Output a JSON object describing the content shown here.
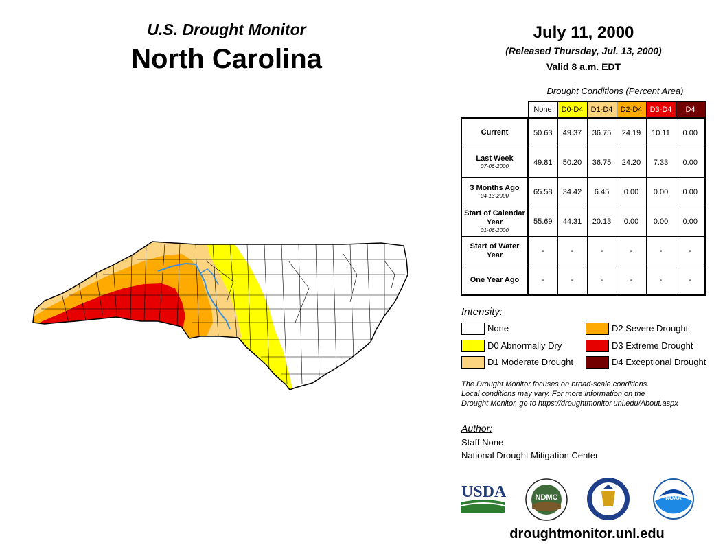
{
  "header": {
    "subtitle": "U.S. Drought Monitor",
    "state": "North Carolina",
    "date": "July 11, 2000",
    "released": "(Released Thursday, Jul. 13, 2000)",
    "valid": "Valid 8 a.m. EDT"
  },
  "table": {
    "caption": "Drought Conditions (Percent Area)",
    "columns": [
      "None",
      "D0-D4",
      "D1-D4",
      "D2-D4",
      "D3-D4",
      "D4"
    ],
    "rows": [
      {
        "label": "Current",
        "date": "",
        "values": [
          "50.63",
          "49.37",
          "36.75",
          "24.19",
          "10.11",
          "0.00"
        ]
      },
      {
        "label": "Last Week",
        "date": "07-06-2000",
        "values": [
          "49.81",
          "50.20",
          "36.75",
          "24.20",
          "7.33",
          "0.00"
        ]
      },
      {
        "label": "3 Months Ago",
        "date": "04-13-2000",
        "values": [
          "65.58",
          "34.42",
          "6.45",
          "0.00",
          "0.00",
          "0.00"
        ]
      },
      {
        "label": "Start of Calendar Year",
        "date": "01-06-2000",
        "values": [
          "55.69",
          "44.31",
          "20.13",
          "0.00",
          "0.00",
          "0.00"
        ]
      },
      {
        "label": "Start of Water Year",
        "date": "",
        "values": [
          "-",
          "-",
          "-",
          "-",
          "-",
          "-"
        ]
      },
      {
        "label": "One Year Ago",
        "date": "",
        "values": [
          "-",
          "-",
          "-",
          "-",
          "-",
          "-"
        ]
      }
    ]
  },
  "legend": {
    "title": "Intensity:",
    "items": [
      {
        "label": "None",
        "color": "#ffffff"
      },
      {
        "label": "D0 Abnormally Dry",
        "color": "#ffff00"
      },
      {
        "label": "D1 Moderate Drought",
        "color": "#fcd37f"
      },
      {
        "label": "D2 Severe Drought",
        "color": "#ffaa00"
      },
      {
        "label": "D3 Extreme Drought",
        "color": "#e60000"
      },
      {
        "label": "D4 Exceptional Drought",
        "color": "#730000"
      }
    ]
  },
  "note": {
    "line1": "The Drought Monitor focuses on broad-scale conditions.",
    "line2": "Local conditions may vary. For more information on the",
    "line3": "Drought Monitor, go to https://droughtmonitor.unl.edu/About.aspx"
  },
  "author": {
    "title": "Author:",
    "name": "Staff None",
    "org": "National Drought Mitigation Center"
  },
  "logos": {
    "usda": "USDA",
    "ndmc": "NDMC",
    "noaa": "NOAA"
  },
  "footer": {
    "url": "droughtmonitor.unl.edu"
  }
}
